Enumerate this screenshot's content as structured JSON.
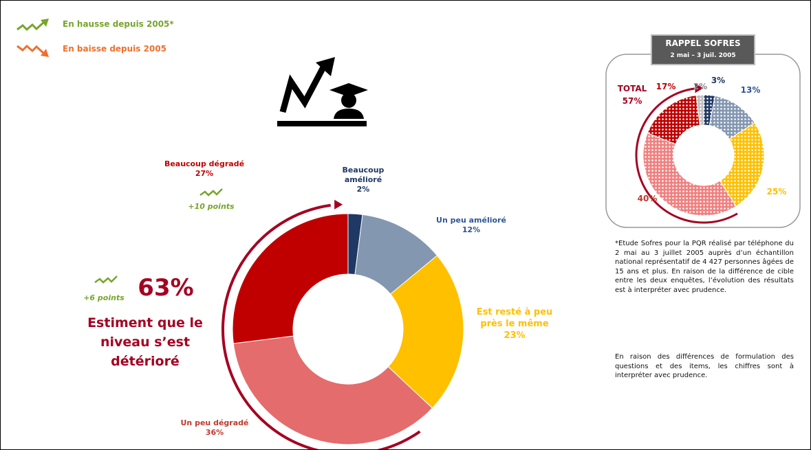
{
  "legend": [
    {
      "label": "En hausse depuis 2005*",
      "color": "#77a52a"
    },
    {
      "label": "En baisse depuis 2005",
      "color": "#f0702d"
    }
  ],
  "headline": {
    "change": "+6 points",
    "value": "63%",
    "text": "Estiment que le niveau s’est détérioré"
  },
  "recall": {
    "title": "RAPPEL SOFRES",
    "subtitle": "2 mai – 3 juil. 2005"
  },
  "notes": [
    "*Etude Sofres pour la PQR réalisé par téléphone du 2 mai au 3 juillet 2005 auprès d’un échantillon national représentatif de 4 427 personnes âgées de 15 ans et plus. En raison de la différence de cible entre les deux enquêtes, l’évolution des résultats est à interpréter avec prudence.",
    "En raison des différences de formulation des questions et des items, les chiffres sont à interpréter avec prudence."
  ],
  "chart_data": [
    {
      "type": "donut",
      "categories": [
        "Beaucoup amélioré",
        "Un peu amélioré",
        "Est resté à peu près le même",
        "Un peu dégradé",
        "Beaucoup dégradé"
      ],
      "values": [
        2,
        12,
        23,
        36,
        27
      ],
      "value_labels": [
        "2%",
        "12%",
        "23%",
        "36%",
        "27%"
      ],
      "colors": [
        "#1f3864",
        "#8497b0",
        "#ffc000",
        "#e46c6c",
        "#c00000"
      ],
      "label_colors": [
        "#1f3864",
        "#2f5597",
        "#ffc000",
        "#c0392b",
        "#c00000"
      ],
      "annotation": "+10 points"
    },
    {
      "type": "donut",
      "values": [
        3,
        13,
        25,
        40,
        17,
        2
      ],
      "value_labels": [
        "3%",
        "13%",
        "25%",
        "40%",
        "17%",
        "2%"
      ],
      "colors": [
        "#1f3864",
        "#8497b0",
        "#ffc000",
        "#f08080",
        "#c00000",
        "#bfbfbf"
      ],
      "label_colors": [
        "#1f3864",
        "#2f5597",
        "#ffc000",
        "#c0392b",
        "#c00000",
        "#8c8c8c"
      ],
      "annotation": [
        "TOTAL",
        "57%"
      ]
    }
  ]
}
